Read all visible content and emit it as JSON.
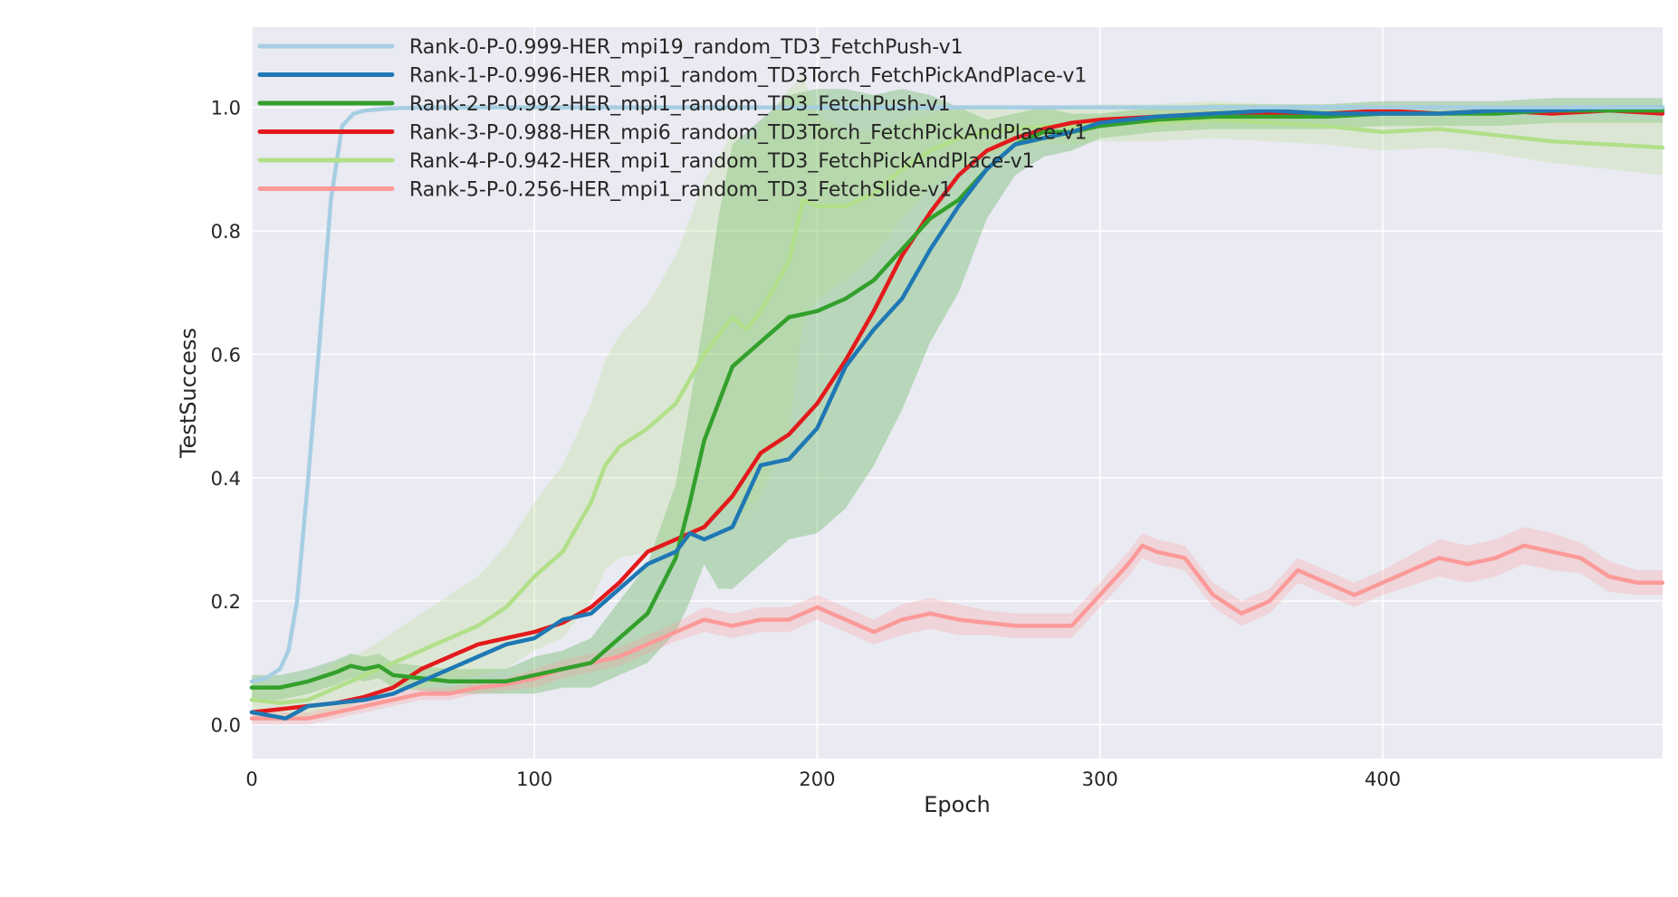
{
  "chart_data": {
    "type": "line",
    "xlabel": "Epoch",
    "ylabel": "TestSuccess",
    "xlim": [
      0,
      499
    ],
    "ylim": [
      -0.055,
      1.13
    ],
    "xticks": [
      "0",
      "100",
      "200",
      "300",
      "400"
    ],
    "xtick_values": [
      0,
      100,
      200,
      300,
      400
    ],
    "yticks": [
      "0.0",
      "0.2",
      "0.4",
      "0.6",
      "0.8",
      "1.0"
    ],
    "ytick_values": [
      0.0,
      0.2,
      0.4,
      0.6,
      0.8,
      1.0
    ],
    "grid": true,
    "legend_position": "top-left",
    "background_color": "#EAEAF2",
    "series": [
      {
        "name": "Rank-0-P-0.999-HER_mpi19_random_TD3_FetchPush-v1",
        "color": "#A6CEE3",
        "x": [
          0,
          5,
          10,
          13,
          16,
          20,
          24,
          28,
          32,
          36,
          40,
          48,
          60,
          100,
          200,
          300,
          400,
          499
        ],
        "y": [
          0.07,
          0.075,
          0.09,
          0.12,
          0.2,
          0.4,
          0.62,
          0.85,
          0.97,
          0.99,
          0.995,
          0.998,
          1.0,
          1.0,
          1.0,
          1.0,
          1.0,
          1.0
        ],
        "band": []
      },
      {
        "name": "Rank-1-P-0.996-HER_mpi1_random_TD3Torch_FetchPickAndPlace-v1",
        "color": "#1F78B4",
        "x": [
          0,
          12,
          20,
          30,
          40,
          50,
          60,
          70,
          80,
          90,
          100,
          110,
          120,
          130,
          140,
          150,
          155,
          160,
          170,
          180,
          190,
          200,
          210,
          220,
          230,
          240,
          250,
          260,
          270,
          280,
          290,
          300,
          320,
          340,
          360,
          380,
          400,
          420,
          440,
          460,
          480,
          499
        ],
        "y": [
          0.02,
          0.01,
          0.03,
          0.035,
          0.04,
          0.05,
          0.07,
          0.09,
          0.11,
          0.13,
          0.14,
          0.17,
          0.18,
          0.22,
          0.26,
          0.28,
          0.31,
          0.3,
          0.32,
          0.42,
          0.43,
          0.48,
          0.58,
          0.64,
          0.69,
          0.77,
          0.84,
          0.9,
          0.94,
          0.95,
          0.96,
          0.975,
          0.985,
          0.99,
          0.995,
          0.99,
          0.99,
          0.99,
          0.995,
          0.995,
          1.0,
          1.0
        ],
        "band": []
      },
      {
        "name": "Rank-2-P-0.992-HER_mpi1_random_TD3_FetchPush-v1",
        "color": "#33A02C",
        "x": [
          0,
          10,
          20,
          30,
          35,
          40,
          45,
          50,
          60,
          70,
          80,
          90,
          100,
          110,
          120,
          130,
          140,
          150,
          155,
          160,
          165,
          170,
          180,
          190,
          200,
          210,
          220,
          230,
          240,
          250,
          260,
          270,
          280,
          290,
          300,
          320,
          340,
          360,
          380,
          400,
          420,
          440,
          460,
          480,
          499
        ],
        "y": [
          0.06,
          0.06,
          0.07,
          0.085,
          0.095,
          0.09,
          0.095,
          0.08,
          0.075,
          0.07,
          0.07,
          0.07,
          0.08,
          0.09,
          0.1,
          0.14,
          0.18,
          0.27,
          0.36,
          0.46,
          0.52,
          0.58,
          0.62,
          0.66,
          0.67,
          0.69,
          0.72,
          0.77,
          0.82,
          0.85,
          0.9,
          0.94,
          0.96,
          0.96,
          0.97,
          0.98,
          0.985,
          0.985,
          0.985,
          0.99,
          0.99,
          0.99,
          0.995,
          0.995,
          0.995
        ],
        "band": [
          0.02,
          0.02,
          0.02,
          0.02,
          0.02,
          0.02,
          0.02,
          0.02,
          0.02,
          0.02,
          0.02,
          0.02,
          0.03,
          0.03,
          0.04,
          0.06,
          0.08,
          0.12,
          0.16,
          0.2,
          0.3,
          0.36,
          0.36,
          0.36,
          0.36,
          0.34,
          0.3,
          0.26,
          0.2,
          0.15,
          0.08,
          0.05,
          0.04,
          0.03,
          0.02,
          0.02,
          0.02,
          0.02,
          0.02,
          0.02,
          0.02,
          0.02,
          0.02,
          0.02,
          0.02
        ]
      },
      {
        "name": "Rank-3-P-0.988-HER_mpi6_random_TD3Torch_FetchPickAndPlace-v1",
        "color": "#E31A1C",
        "x": [
          0,
          10,
          20,
          30,
          40,
          50,
          60,
          70,
          80,
          90,
          100,
          110,
          120,
          130,
          140,
          150,
          160,
          170,
          180,
          190,
          200,
          210,
          220,
          230,
          240,
          250,
          260,
          270,
          280,
          290,
          300,
          320,
          340,
          360,
          380,
          400,
          420,
          440,
          460,
          480,
          499
        ],
        "y": [
          0.02,
          0.025,
          0.03,
          0.035,
          0.045,
          0.06,
          0.09,
          0.11,
          0.13,
          0.14,
          0.15,
          0.165,
          0.19,
          0.23,
          0.28,
          0.3,
          0.32,
          0.37,
          0.44,
          0.47,
          0.52,
          0.59,
          0.67,
          0.76,
          0.83,
          0.89,
          0.93,
          0.95,
          0.965,
          0.975,
          0.98,
          0.985,
          0.99,
          0.99,
          0.99,
          0.995,
          0.99,
          0.995,
          0.99,
          0.995,
          0.99
        ],
        "band": []
      },
      {
        "name": "Rank-4-P-0.942-HER_mpi1_random_TD3_FetchPickAndPlace-v1",
        "color": "#B2DF8A",
        "x": [
          0,
          10,
          20,
          30,
          40,
          50,
          60,
          70,
          80,
          90,
          100,
          110,
          120,
          125,
          130,
          140,
          150,
          160,
          170,
          175,
          180,
          190,
          195,
          200,
          210,
          220,
          230,
          240,
          250,
          260,
          270,
          280,
          290,
          300,
          320,
          340,
          360,
          380,
          400,
          420,
          440,
          460,
          480,
          499
        ],
        "y": [
          0.04,
          0.035,
          0.04,
          0.06,
          0.08,
          0.1,
          0.12,
          0.14,
          0.16,
          0.19,
          0.24,
          0.28,
          0.36,
          0.42,
          0.45,
          0.48,
          0.52,
          0.6,
          0.66,
          0.64,
          0.67,
          0.75,
          0.85,
          0.84,
          0.84,
          0.86,
          0.9,
          0.93,
          0.95,
          0.96,
          0.965,
          0.97,
          0.97,
          0.975,
          0.975,
          0.98,
          0.975,
          0.97,
          0.96,
          0.965,
          0.955,
          0.945,
          0.94,
          0.935
        ],
        "band": [
          0.03,
          0.03,
          0.03,
          0.04,
          0.04,
          0.05,
          0.06,
          0.07,
          0.08,
          0.1,
          0.12,
          0.14,
          0.16,
          0.17,
          0.18,
          0.2,
          0.24,
          0.28,
          0.3,
          0.3,
          0.3,
          0.28,
          0.2,
          0.15,
          0.12,
          0.1,
          0.08,
          0.06,
          0.05,
          0.04,
          0.03,
          0.03,
          0.03,
          0.03,
          0.03,
          0.03,
          0.03,
          0.03,
          0.03,
          0.03,
          0.03,
          0.035,
          0.04,
          0.045
        ]
      },
      {
        "name": "Rank-5-P-0.256-HER_mpi1_random_TD3_FetchSlide-v1",
        "color": "#FB9A99",
        "x": [
          0,
          10,
          20,
          30,
          40,
          50,
          60,
          70,
          80,
          90,
          100,
          110,
          120,
          130,
          140,
          150,
          160,
          170,
          180,
          190,
          200,
          210,
          220,
          230,
          240,
          250,
          260,
          270,
          280,
          290,
          300,
          310,
          315,
          320,
          330,
          340,
          350,
          360,
          370,
          380,
          390,
          400,
          410,
          420,
          430,
          440,
          450,
          460,
          470,
          480,
          490,
          499
        ],
        "y": [
          0.01,
          0.01,
          0.01,
          0.02,
          0.03,
          0.04,
          0.05,
          0.05,
          0.06,
          0.065,
          0.075,
          0.09,
          0.1,
          0.11,
          0.13,
          0.15,
          0.17,
          0.16,
          0.17,
          0.17,
          0.19,
          0.17,
          0.15,
          0.17,
          0.18,
          0.17,
          0.165,
          0.16,
          0.16,
          0.16,
          0.21,
          0.26,
          0.29,
          0.28,
          0.27,
          0.21,
          0.18,
          0.2,
          0.25,
          0.23,
          0.21,
          0.23,
          0.25,
          0.27,
          0.26,
          0.27,
          0.29,
          0.28,
          0.27,
          0.24,
          0.23,
          0.23
        ],
        "band": [
          0.01,
          0.01,
          0.01,
          0.01,
          0.01,
          0.01,
          0.01,
          0.01,
          0.01,
          0.01,
          0.015,
          0.015,
          0.015,
          0.015,
          0.015,
          0.015,
          0.02,
          0.02,
          0.02,
          0.02,
          0.02,
          0.02,
          0.02,
          0.025,
          0.025,
          0.025,
          0.02,
          0.02,
          0.02,
          0.02,
          0.02,
          0.02,
          0.02,
          0.02,
          0.02,
          0.02,
          0.02,
          0.02,
          0.02,
          0.02,
          0.02,
          0.02,
          0.025,
          0.03,
          0.03,
          0.03,
          0.03,
          0.03,
          0.025,
          0.025,
          0.02,
          0.02
        ]
      }
    ]
  }
}
